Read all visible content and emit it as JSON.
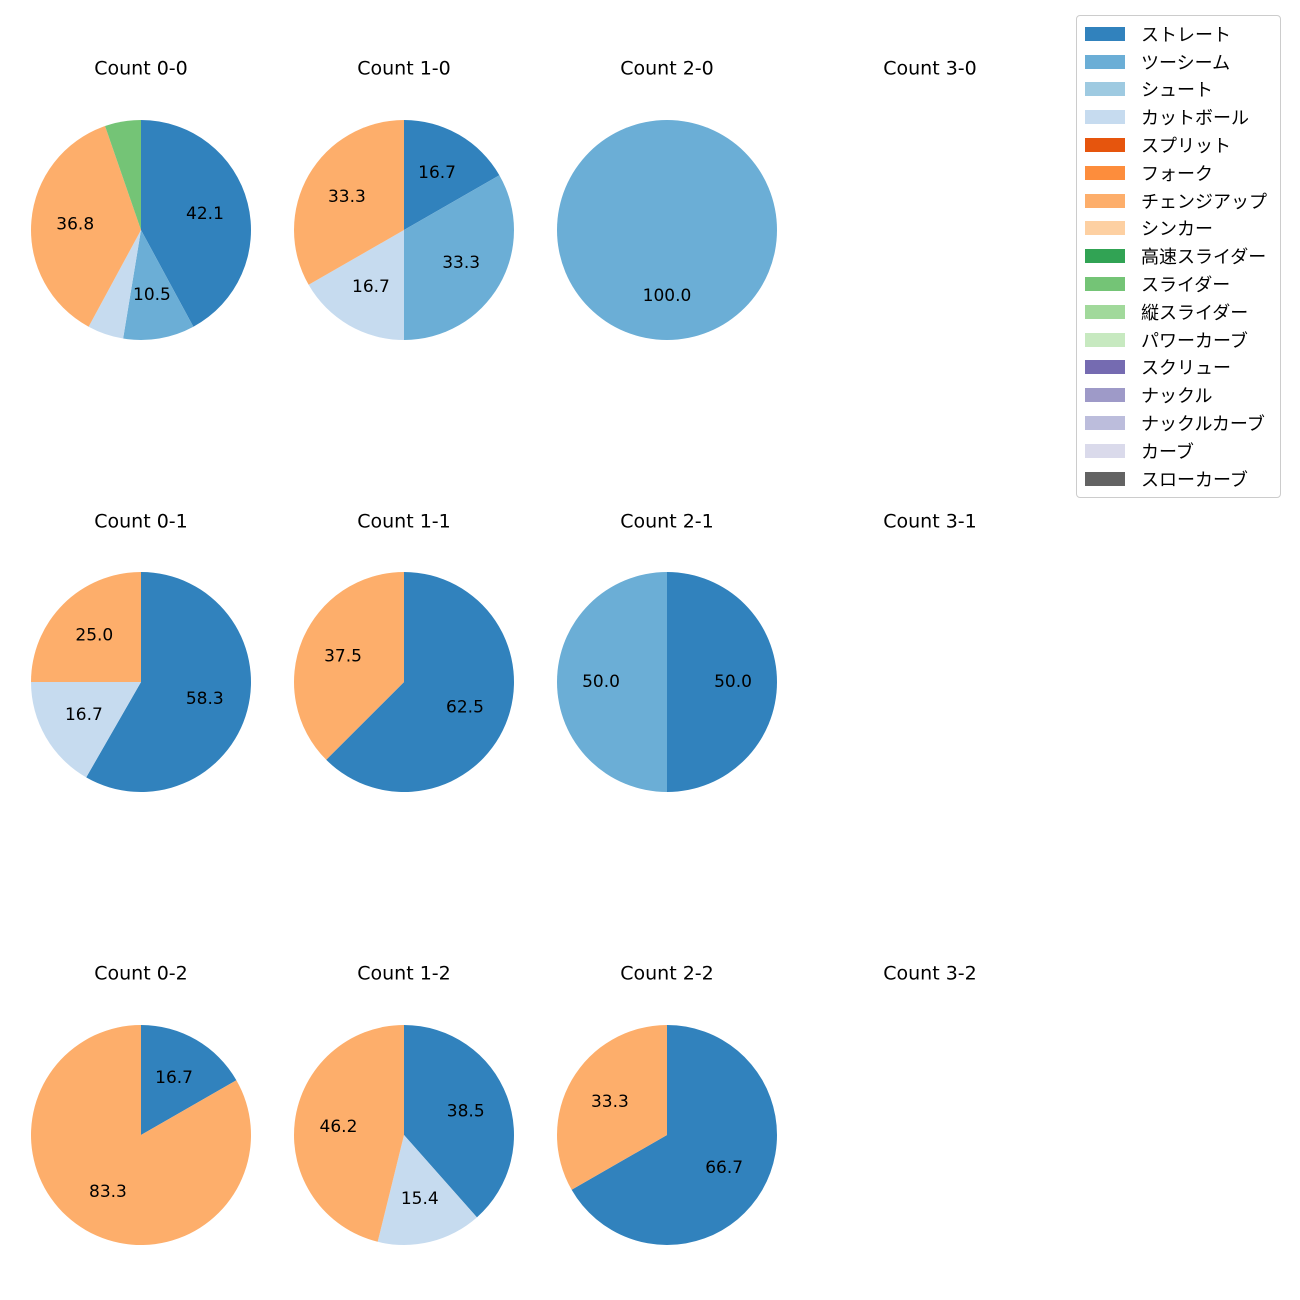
{
  "colors": {
    "ストレート": "#3182bd",
    "ツーシーム": "#6baed6",
    "シュート": "#9ecae1",
    "カットボール": "#c6dbef",
    "スプリット": "#e6550d",
    "フォーク": "#fd8d3c",
    "チェンジアップ": "#fdae6b",
    "シンカー": "#fdd0a2",
    "高速スライダー": "#31a354",
    "スライダー": "#74c476",
    "縦スライダー": "#a1d99b",
    "パワーカーブ": "#c7e9c0",
    "スクリュー": "#756bb1",
    "ナックル": "#9e9ac8",
    "ナックルカーブ": "#bcbddc",
    "カーブ": "#dadaeb",
    "スローカーブ": "#636363"
  },
  "legend": [
    "ストレート",
    "ツーシーム",
    "シュート",
    "カットボール",
    "スプリット",
    "フォーク",
    "チェンジアップ",
    "シンカー",
    "高速スライダー",
    "スライダー",
    "縦スライダー",
    "パワーカーブ",
    "スクリュー",
    "ナックル",
    "ナックルカーブ",
    "カーブ",
    "スローカーブ"
  ],
  "chart_data": [
    {
      "type": "pie",
      "title": "Count 0-0",
      "slices": [
        {
          "label": "ストレート",
          "value": 42.1
        },
        {
          "label": "ツーシーム",
          "value": 10.5
        },
        {
          "label": "カットボール",
          "value": 5.3,
          "show_label": false
        },
        {
          "label": "チェンジアップ",
          "value": 36.8
        },
        {
          "label": "スライダー",
          "value": 5.3,
          "show_label": false
        }
      ]
    },
    {
      "type": "pie",
      "title": "Count 1-0",
      "slices": [
        {
          "label": "ストレート",
          "value": 16.7
        },
        {
          "label": "ツーシーム",
          "value": 33.3
        },
        {
          "label": "カットボール",
          "value": 16.7
        },
        {
          "label": "チェンジアップ",
          "value": 33.3
        }
      ]
    },
    {
      "type": "pie",
      "title": "Count 2-0",
      "slices": [
        {
          "label": "ツーシーム",
          "value": 100.0
        }
      ]
    },
    {
      "type": "pie",
      "title": "Count 3-0",
      "slices": []
    },
    {
      "type": "pie",
      "title": "Count 0-1",
      "slices": [
        {
          "label": "ストレート",
          "value": 58.3
        },
        {
          "label": "カットボール",
          "value": 16.7
        },
        {
          "label": "チェンジアップ",
          "value": 25.0
        }
      ]
    },
    {
      "type": "pie",
      "title": "Count 1-1",
      "slices": [
        {
          "label": "ストレート",
          "value": 62.5
        },
        {
          "label": "チェンジアップ",
          "value": 37.5
        }
      ]
    },
    {
      "type": "pie",
      "title": "Count 2-1",
      "slices": [
        {
          "label": "ストレート",
          "value": 50.0
        },
        {
          "label": "ツーシーム",
          "value": 50.0
        }
      ]
    },
    {
      "type": "pie",
      "title": "Count 3-1",
      "slices": []
    },
    {
      "type": "pie",
      "title": "Count 0-2",
      "slices": [
        {
          "label": "ストレート",
          "value": 16.7
        },
        {
          "label": "チェンジアップ",
          "value": 83.3
        }
      ]
    },
    {
      "type": "pie",
      "title": "Count 1-2",
      "slices": [
        {
          "label": "ストレート",
          "value": 38.5
        },
        {
          "label": "カットボール",
          "value": 15.4
        },
        {
          "label": "チェンジアップ",
          "value": 46.2
        }
      ]
    },
    {
      "type": "pie",
      "title": "Count 2-2",
      "slices": [
        {
          "label": "ストレート",
          "value": 66.7
        },
        {
          "label": "チェンジアップ",
          "value": 33.3
        }
      ]
    },
    {
      "type": "pie",
      "title": "Count 3-2",
      "slices": []
    }
  ]
}
